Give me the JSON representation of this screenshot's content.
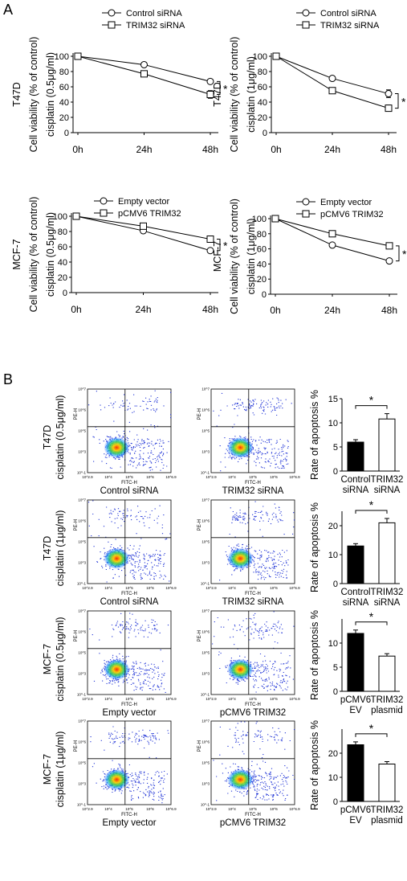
{
  "panel_labels": [
    "A",
    "B"
  ],
  "chart_data": [
    {
      "type": "line",
      "panel": "A",
      "cell_line": "T47D",
      "ylabel": [
        "T47D",
        "Cell viability (% of control)",
        "cisplatin (0.5μg/ml)"
      ],
      "categories": [
        "0h",
        "24h",
        "48h"
      ],
      "ylim": [
        0,
        100
      ],
      "yticks": [
        "0",
        "20",
        "40",
        "60",
        "80",
        "100"
      ],
      "series": [
        {
          "name": "Control siRNA",
          "marker": "circle",
          "values": [
            100,
            89,
            67
          ],
          "errors": [
            0,
            1,
            2
          ]
        },
        {
          "name": "TRIM32 siRNA",
          "marker": "square",
          "values": [
            100,
            77,
            50
          ],
          "errors": [
            0,
            1,
            5
          ]
        }
      ],
      "annotation": "*"
    },
    {
      "type": "line",
      "panel": "A",
      "cell_line": "T47D",
      "ylabel": [
        "T47D",
        "Cell viability (% of control)",
        "cisplatin (1μg/ml)"
      ],
      "categories": [
        "0h",
        "24h",
        "48h"
      ],
      "ylim": [
        0,
        100
      ],
      "yticks": [
        "0",
        "20",
        "40",
        "60",
        "80",
        "100"
      ],
      "series": [
        {
          "name": "Control siRNA",
          "marker": "circle",
          "values": [
            100,
            71,
            51
          ],
          "errors": [
            0,
            1,
            5
          ]
        },
        {
          "name": "TRIM32 siRNA",
          "marker": "square",
          "values": [
            100,
            55,
            32
          ],
          "errors": [
            0,
            1,
            4
          ]
        }
      ],
      "annotation": "*"
    },
    {
      "type": "line",
      "panel": "A",
      "cell_line": "MCF-7",
      "ylabel": [
        "MCF-7",
        "Cell viability (% of control)",
        "cisplatin (0.5μg/ml)"
      ],
      "categories": [
        "0h",
        "24h",
        "48h"
      ],
      "ylim": [
        0,
        100
      ],
      "yticks": [
        "0",
        "20",
        "40",
        "60",
        "80",
        "100"
      ],
      "series": [
        {
          "name": "Empty vector",
          "marker": "circle",
          "values": [
            100,
            81,
            55
          ],
          "errors": [
            0,
            1,
            3
          ]
        },
        {
          "name": "pCMV6 TRIM32",
          "marker": "square",
          "values": [
            100,
            87,
            70
          ],
          "errors": [
            0,
            1,
            3
          ]
        }
      ],
      "annotation": "*"
    },
    {
      "type": "line",
      "panel": "A",
      "cell_line": "MCF-7",
      "ylabel": [
        "MCF-7",
        "Cell viability (% of control)",
        "cisplatin (1μg/ml)"
      ],
      "categories": [
        "0h",
        "24h",
        "48h"
      ],
      "ylim": [
        0,
        100
      ],
      "yticks": [
        "0",
        "20",
        "40",
        "60",
        "80",
        "100"
      ],
      "series": [
        {
          "name": "Empty vector",
          "marker": "circle",
          "values": [
            100,
            65,
            44
          ],
          "errors": [
            0,
            1,
            3
          ]
        },
        {
          "name": "pCMV6 TRIM32",
          "marker": "square",
          "values": [
            100,
            80,
            64
          ],
          "errors": [
            0,
            1,
            3
          ]
        }
      ],
      "annotation": "*"
    },
    {
      "type": "bar",
      "panel": "B",
      "ylabel": "Rate of apoptosis %",
      "ylim": [
        0,
        15
      ],
      "yticks": [
        "0",
        "5",
        "10",
        "15"
      ],
      "categories": [
        [
          "Control",
          "siRNA"
        ],
        [
          "TRIM32",
          "siRNA"
        ]
      ],
      "values": [
        6,
        10.8
      ],
      "errors": [
        0.5,
        1.1
      ],
      "bar_colors": [
        "#000000",
        "#ffffff"
      ],
      "annotation": "*"
    },
    {
      "type": "bar",
      "panel": "B",
      "ylabel": "Rate of apoptosis %",
      "ylim": [
        0,
        25
      ],
      "yticks": [
        "0",
        "10",
        "20"
      ],
      "categories": [
        [
          "Control",
          "siRNA"
        ],
        [
          "TRIM32",
          "siRNA"
        ]
      ],
      "values": [
        13,
        21
      ],
      "errors": [
        0.8,
        1.5
      ],
      "bar_colors": [
        "#000000",
        "#ffffff"
      ],
      "annotation": "*"
    },
    {
      "type": "bar",
      "panel": "B",
      "ylabel": "Rate of apoptosis %",
      "ylim": [
        0,
        15
      ],
      "yticks": [
        "0",
        "5",
        "10"
      ],
      "categories": [
        [
          "pCMV6",
          "EV"
        ],
        [
          "TRIM32",
          "plasmid"
        ]
      ],
      "values": [
        12,
        7.3
      ],
      "errors": [
        0.7,
        0.5
      ],
      "bar_colors": [
        "#000000",
        "#ffffff"
      ],
      "annotation": "*"
    },
    {
      "type": "bar",
      "panel": "B",
      "ylabel": "Rate of apoptosis %",
      "ylim": [
        0,
        30
      ],
      "yticks": [
        "0",
        "10",
        "20"
      ],
      "categories": [
        [
          "pCMV6",
          "EV"
        ],
        [
          "TRIM32",
          "plasmid"
        ]
      ],
      "values": [
        23.5,
        15.5
      ],
      "errors": [
        1.2,
        1
      ],
      "bar_colors": [
        "#000000",
        "#ffffff"
      ],
      "annotation": "*"
    }
  ],
  "flow_rows": [
    {
      "row_label": [
        "T47D",
        "cisplatin (0.5μg/ml)"
      ],
      "left_caption": "Control siRNA",
      "right_caption": "TRIM32 siRNA"
    },
    {
      "row_label": [
        "T47D",
        "cisplatin (1μg/ml)"
      ],
      "left_caption": "Control siRNA",
      "right_caption": "TRIM32 siRNA"
    },
    {
      "row_label": [
        "MCF-7",
        "cisplatin (0.5μg/ml)"
      ],
      "left_caption": "Empty vector",
      "right_caption": "pCMV6 TRIM32"
    },
    {
      "row_label": [
        "MCF-7",
        "cisplatin (1μg/ml)"
      ],
      "left_caption": "Empty vector",
      "right_caption": "pCMV6 TRIM32"
    }
  ],
  "flow_axes": {
    "x_label": "FITC-H",
    "y_label": "PE-H",
    "x_ticks": [
      "10^2.9",
      "10^4",
      "10^5",
      "10^6",
      "10^6.9"
    ],
    "y_ticks": [
      "10^-1",
      "10^3",
      "10^5",
      "10^6",
      "10^7"
    ]
  }
}
